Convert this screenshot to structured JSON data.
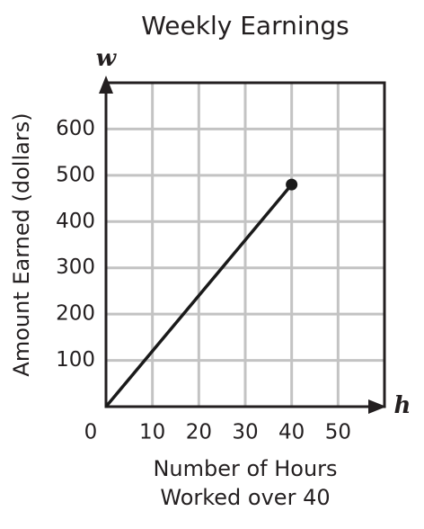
{
  "chart_data": {
    "type": "line",
    "title": "Weekly Earnings",
    "xlabel": [
      "Number of Hours",
      "Worked over 40"
    ],
    "ylabel": "Amount Earned (dollars)",
    "x_axis_name": "h",
    "y_axis_name": "w",
    "x": [
      0,
      40
    ],
    "values": [
      0,
      480
    ],
    "color": "#1a1a1a",
    "xlim": [
      0,
      60
    ],
    "ylim": [
      0,
      700
    ],
    "xticks": [
      0,
      10,
      20,
      30,
      40,
      50
    ],
    "yticks": [
      100,
      200,
      300,
      400,
      500,
      600
    ],
    "grid": true
  }
}
